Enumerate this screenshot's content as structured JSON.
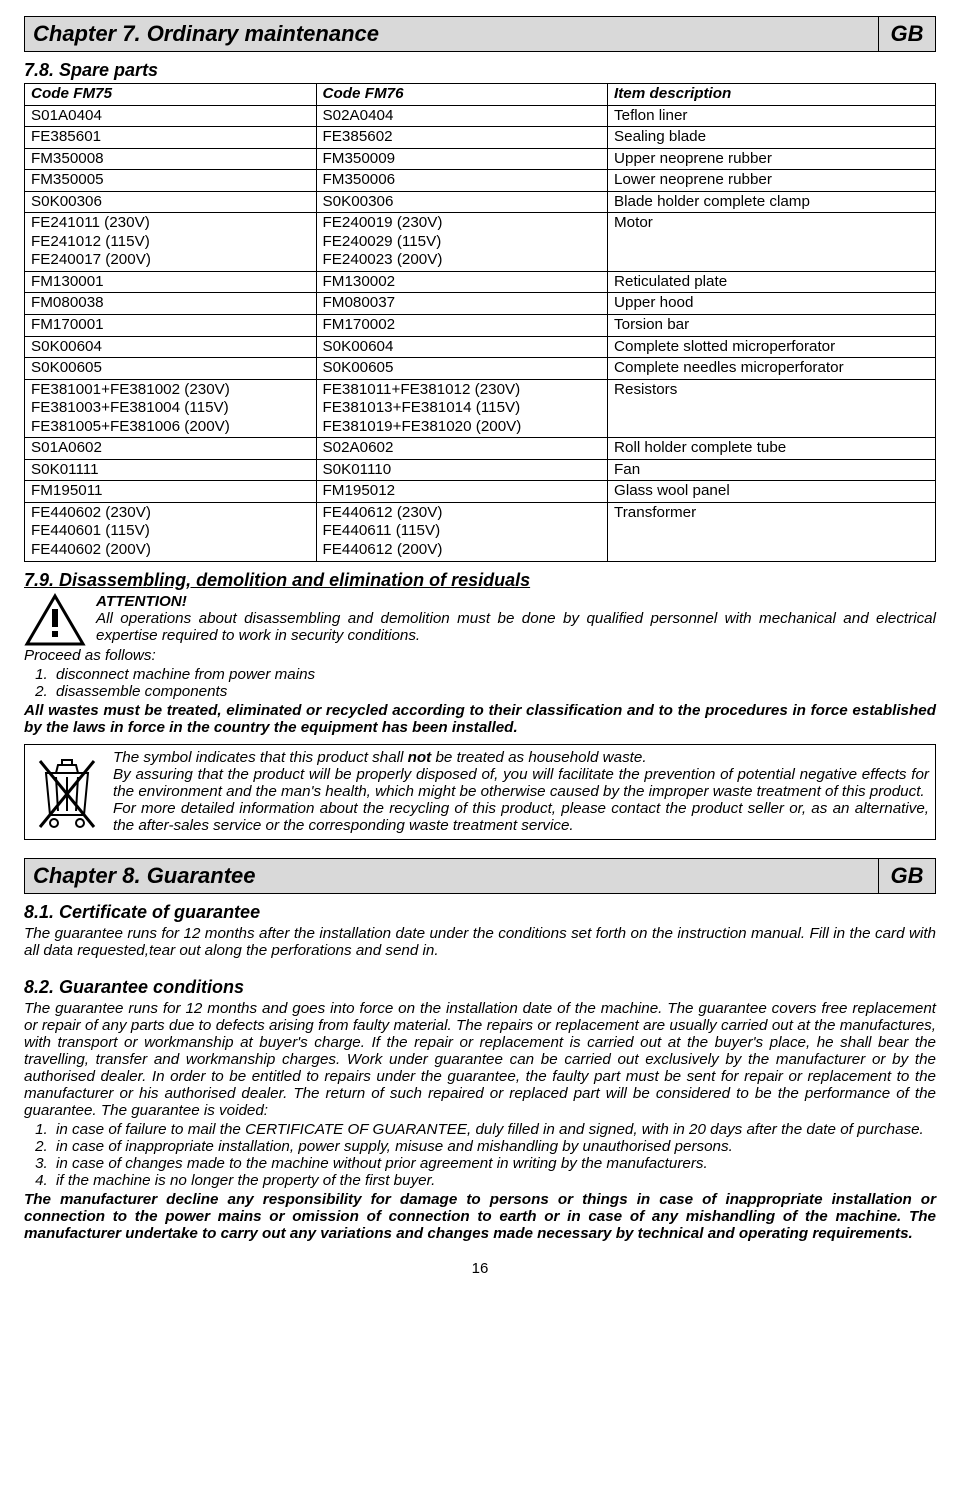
{
  "chapter7": {
    "title": "Chapter 7. Ordinary maintenance",
    "lang": "GB"
  },
  "s78": {
    "heading": "7.8. Spare parts"
  },
  "parts": {
    "headers": [
      "Code FM75",
      "Code FM76",
      "Item description"
    ],
    "rows": [
      [
        "S01A0404",
        "S02A0404",
        "Teflon liner"
      ],
      [
        "FE385601",
        "FE385602",
        "Sealing blade"
      ],
      [
        "FM350008",
        "FM350009",
        "Upper neoprene rubber"
      ],
      [
        "FM350005",
        "FM350006",
        "Lower neoprene rubber"
      ],
      [
        "S0K00306",
        "S0K00306",
        "Blade holder complete clamp"
      ],
      [
        "FE241011 (230V)\nFE241012 (115V)\nFE240017 (200V)",
        "FE240019 (230V)\nFE240029 (115V)\nFE240023 (200V)",
        "Motor"
      ],
      [
        "FM130001",
        "FM130002",
        "Reticulated plate"
      ],
      [
        "FM080038",
        "FM080037",
        "Upper hood"
      ],
      [
        "FM170001",
        "FM170002",
        "Torsion bar"
      ],
      [
        "S0K00604",
        "S0K00604",
        "Complete slotted microperforator"
      ],
      [
        "S0K00605",
        "S0K00605",
        "Complete needles microperforator"
      ],
      [
        "FE381001+FE381002 (230V)\nFE381003+FE381004 (115V)\nFE381005+FE381006 (200V)",
        "FE381011+FE381012 (230V)\nFE381013+FE381014 (115V)\nFE381019+FE381020 (200V)",
        "Resistors"
      ],
      [
        "S01A0602",
        "S02A0602",
        "Roll holder complete tube"
      ],
      [
        "S0K01111",
        "S0K01110",
        "Fan"
      ],
      [
        "FM195011",
        "FM195012",
        "Glass wool panel"
      ],
      [
        "FE440602 (230V)\nFE440601 (115V)\nFE440602 (200V)",
        "FE440612 (230V)\nFE440611 (115V)\nFE440612 (200V)",
        "Transformer"
      ]
    ]
  },
  "s79": {
    "heading": "7.9. Disassembling, demolition and elimination of residuals",
    "attention_label": "ATTENTION!",
    "attention_body": "All operations about disassembling and demolition must be done by qualified personnel with mechanical and electrical expertise required to work in security conditions.",
    "proceed": "Proceed as follows:",
    "steps": [
      "disconnect machine from power mains",
      "disassemble components"
    ],
    "waste": "All wastes must be treated, eliminated or recycled according to their classification and to the procedures in force established by the laws in force in the country the equipment has been installed.",
    "weee1a": "The symbol indicates that this product shall ",
    "weee1b": "not",
    "weee1c": " be treated as household waste.",
    "weee2": "By assuring that the product will be properly disposed of, you will facilitate the prevention of potential negative effects for the environment and the man's health, which might be otherwise caused by the improper waste treatment of this product.",
    "weee3": "For more detailed information about the recycling of this product, please contact the product seller or, as an alternative, the after-sales service or the corresponding waste treatment service."
  },
  "chapter8": {
    "title": "Chapter 8. Guarantee",
    "lang": "GB"
  },
  "s81": {
    "heading": "8.1. Certificate of guarantee",
    "body": "The guarantee runs for 12 months after the installation date under the conditions set forth on the instruction manual. Fill in the card with all data requested,tear out along the perforations and send in."
  },
  "s82": {
    "heading": "8.2. Guarantee conditions",
    "body": "The guarantee runs for 12 months and goes into force on the installation date of the machine. The guarantee covers free replacement or repair of any parts due to defects arising from faulty material. The repairs or replacement are usually carried out at the manufactures, with transport or workmanship at buyer's charge. If the repair or replacement is carried out at the buyer's place, he shall bear the travelling, transfer and workmanship charges. Work under guarantee can be carried out exclusively by the manufacturer or by the authorised dealer. In order to be entitled to repairs under the guarantee, the faulty part must be sent for repair or replacement to the manufacturer or his authorised dealer. The return of such repaired or replaced part will be considered to be the performance of the guarantee. The guarantee is voided:",
    "void": [
      "in case of failure to mail the CERTIFICATE OF GUARANTEE, duly filled in and signed, with in 20 days after the date of purchase.",
      "in case of inappropriate installation, power supply, misuse and mishandling by unauthorised persons.",
      "in case of changes made to the machine without prior agreement in writing by the manufacturers.",
      "if the machine is no longer the property of the first buyer."
    ],
    "disclaimer": "The manufacturer decline any responsibility for damage to persons or things in case of inappropriate installation or connection to the power mains or omission of connection to earth or in case of any mishandling of the machine. The manufacturer undertake to carry out any variations and changes made necessary by technical and operating requirements."
  },
  "page_number": "16"
}
